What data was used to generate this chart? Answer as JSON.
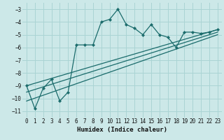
{
  "xlabel": "Humidex (Indice chaleur)",
  "bg_color": "#cce8e8",
  "line_color": "#1a6b6b",
  "grid_color": "#aad4d4",
  "xlim": [
    -0.5,
    23.5
  ],
  "ylim": [
    -11.5,
    -2.5
  ],
  "xticks": [
    0,
    1,
    2,
    3,
    4,
    5,
    6,
    7,
    8,
    9,
    10,
    11,
    12,
    13,
    14,
    15,
    16,
    17,
    18,
    19,
    20,
    21,
    22,
    23
  ],
  "yticks": [
    -11,
    -10,
    -9,
    -8,
    -7,
    -6,
    -5,
    -4,
    -3
  ],
  "main_series": {
    "x": [
      0,
      1,
      2,
      3,
      4,
      5,
      6,
      7,
      8,
      9,
      10,
      11,
      12,
      13,
      14,
      15,
      16,
      17,
      18,
      19,
      20,
      21,
      22,
      23
    ],
    "y": [
      -9.0,
      -10.8,
      -9.2,
      -8.5,
      -10.2,
      -9.5,
      -5.8,
      -5.8,
      -5.8,
      -4.0,
      -3.8,
      -3.0,
      -4.2,
      -4.5,
      -5.0,
      -4.2,
      -5.0,
      -5.2,
      -6.0,
      -4.8,
      -4.8,
      -4.9,
      -4.8,
      -4.6
    ]
  },
  "straight_lines": [
    {
      "x0": 0,
      "y0": -9.0,
      "x1": 23,
      "y1": -4.6
    },
    {
      "x0": 0,
      "y0": -9.5,
      "x1": 23,
      "y1": -4.8
    },
    {
      "x0": 0,
      "y0": -10.2,
      "x1": 23,
      "y1": -5.0
    }
  ]
}
